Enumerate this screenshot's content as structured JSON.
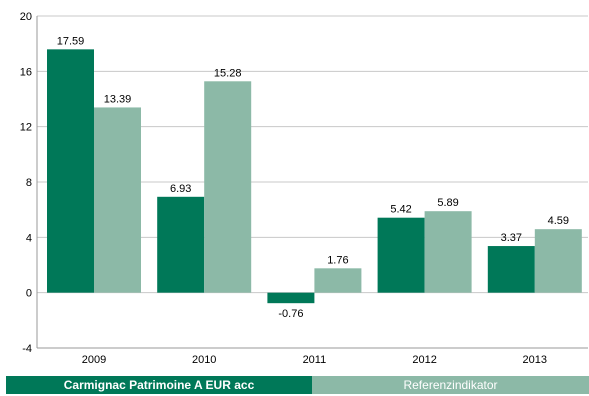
{
  "chart_data": {
    "type": "bar",
    "categories": [
      "2009",
      "2010",
      "2011",
      "2012",
      "2013"
    ],
    "series": [
      {
        "name": "Carmignac Patrimoine A EUR acc",
        "values": [
          17.59,
          6.93,
          -0.76,
          5.42,
          3.37
        ],
        "color": "#007858"
      },
      {
        "name": "Referenzindikator",
        "values": [
          13.39,
          15.28,
          1.76,
          5.89,
          4.59
        ],
        "color": "#8cb9a7"
      }
    ],
    "value_labels": [
      [
        "17.59",
        "6.93",
        "-0.76",
        "5.42",
        "3.37"
      ],
      [
        "13.39",
        "15.28",
        "1.76",
        "5.89",
        "4.59"
      ]
    ],
    "ylim": [
      -4,
      20
    ],
    "yticks": [
      -4,
      0,
      4,
      8,
      12,
      16,
      20
    ],
    "ytick_labels": [
      "-4",
      "0",
      "4",
      "8",
      "12",
      "16",
      "20"
    ],
    "grid": true,
    "legend_position": "bottom"
  }
}
